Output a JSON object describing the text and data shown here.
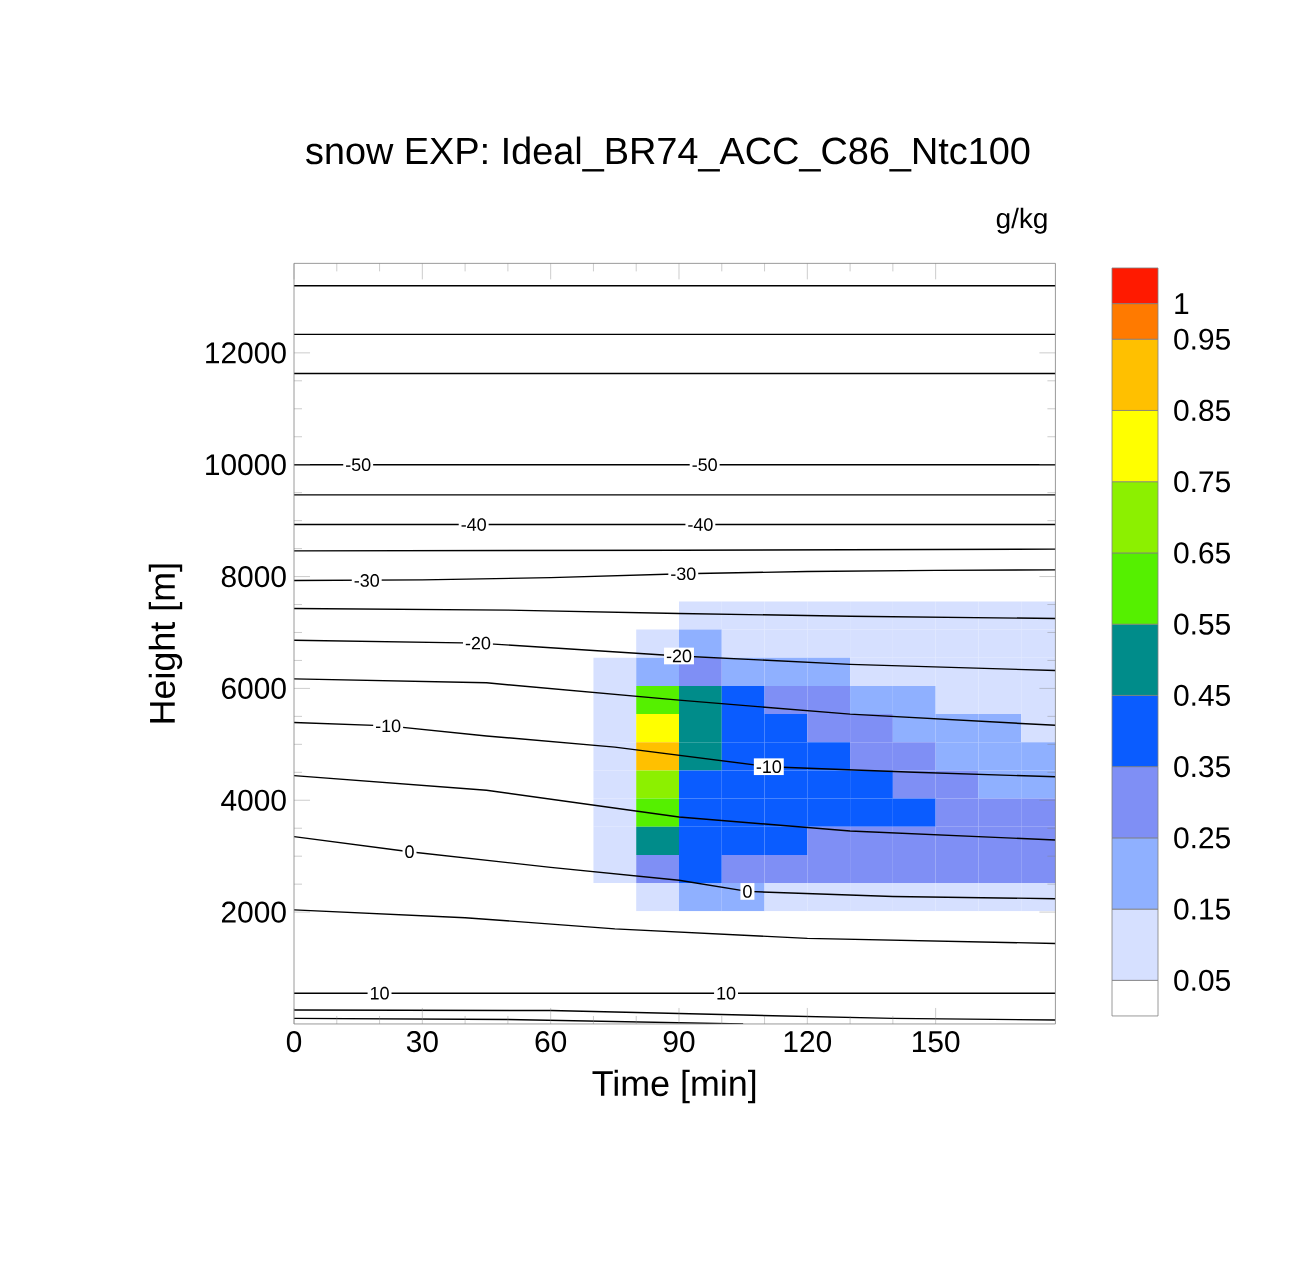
{
  "chart_data": {
    "type": "heatmap",
    "title": "snow EXP: Ideal_BR74_ACC_C86_Ntc100",
    "xlabel": "Time [min]",
    "ylabel": "Height [m]",
    "clabel": "g/kg",
    "x": [
      5,
      15,
      25,
      35,
      45,
      55,
      65,
      75,
      85,
      95,
      105,
      115,
      125,
      135,
      145,
      155,
      165,
      175
    ],
    "cells": [
      [
        0,
        0,
        0,
        0,
        0,
        0,
        0,
        0,
        0,
        0,
        0,
        0,
        0,
        0,
        0,
        0,
        0,
        0
      ],
      [
        0,
        0,
        0,
        0,
        0,
        0,
        0,
        0,
        0,
        0,
        0,
        0,
        0,
        0,
        0,
        0,
        0,
        0
      ],
      [
        0,
        0,
        0,
        0,
        0,
        0,
        0,
        0,
        0,
        0,
        0,
        0,
        0,
        0,
        0,
        0,
        0,
        0
      ],
      [
        0,
        0,
        0,
        0,
        0,
        0,
        0,
        0,
        0,
        0,
        0,
        0,
        0,
        0,
        0,
        0,
        0,
        0
      ],
      [
        0,
        0,
        0,
        0,
        0,
        0,
        0,
        0,
        0,
        0,
        0,
        0,
        0,
        0,
        0,
        0,
        0,
        0
      ],
      [
        0,
        0,
        0,
        0,
        0,
        0,
        0,
        0,
        0,
        0,
        0,
        0,
        0,
        0,
        0,
        0,
        0,
        0
      ],
      [
        0,
        0,
        0,
        0,
        0,
        0,
        0,
        0,
        0,
        0,
        0,
        0,
        0,
        0,
        0,
        0,
        0,
        0
      ],
      [
        0,
        0,
        0,
        0,
        0,
        0,
        0,
        0,
        0,
        0,
        0,
        0,
        0,
        0,
        0,
        0,
        0,
        0
      ],
      [
        0,
        0,
        0,
        0,
        0,
        0,
        0,
        0,
        0,
        0,
        0,
        0,
        0,
        0,
        0,
        0,
        0,
        0
      ],
      [
        0,
        0,
        0,
        0,
        0,
        0,
        0,
        0,
        0,
        0,
        0,
        0,
        0,
        0,
        0,
        0,
        0,
        0
      ],
      [
        0,
        0,
        0,
        0,
        0,
        0,
        0,
        0,
        0,
        0,
        0,
        0,
        0,
        0,
        0,
        0,
        0,
        0
      ],
      [
        0,
        0,
        0,
        0,
        0,
        0,
        0,
        0,
        0,
        0,
        0,
        0,
        0,
        0,
        0,
        0,
        0,
        0
      ],
      [
        0,
        0,
        0,
        0,
        0,
        0,
        0,
        0,
        0,
        0.1,
        0.1,
        0.1,
        0.1,
        0.1,
        0.1,
        0.1,
        0.1,
        0.1
      ],
      [
        0,
        0,
        0,
        0,
        0,
        0,
        0,
        0,
        0.1,
        0.2,
        0.1,
        0.1,
        0.1,
        0.1,
        0.1,
        0.1,
        0.1,
        0.1
      ],
      [
        0,
        0,
        0,
        0,
        0,
        0,
        0,
        0.1,
        0.2,
        0.3,
        0.2,
        0.2,
        0.2,
        0.1,
        0.1,
        0.1,
        0.1,
        0.1
      ],
      [
        0,
        0,
        0,
        0,
        0,
        0,
        0,
        0.1,
        0.6,
        0.5,
        0.4,
        0.3,
        0.3,
        0.2,
        0.2,
        0.1,
        0.1,
        0.1
      ],
      [
        0,
        0,
        0,
        0,
        0,
        0,
        0,
        0.1,
        0.8,
        0.5,
        0.4,
        0.4,
        0.3,
        0.3,
        0.2,
        0.2,
        0.2,
        0.1
      ],
      [
        0,
        0,
        0,
        0,
        0,
        0,
        0,
        0.1,
        0.9,
        0.5,
        0.4,
        0.4,
        0.4,
        0.3,
        0.3,
        0.2,
        0.2,
        0.2
      ],
      [
        0,
        0,
        0,
        0,
        0,
        0,
        0,
        0.1,
        0.7,
        0.4,
        0.4,
        0.4,
        0.4,
        0.4,
        0.3,
        0.3,
        0.2,
        0.2
      ],
      [
        0,
        0,
        0,
        0,
        0,
        0,
        0,
        0.1,
        0.6,
        0.4,
        0.4,
        0.4,
        0.4,
        0.4,
        0.4,
        0.3,
        0.3,
        0.3
      ],
      [
        0,
        0,
        0,
        0,
        0,
        0,
        0,
        0.1,
        0.5,
        0.4,
        0.4,
        0.4,
        0.3,
        0.3,
        0.3,
        0.3,
        0.3,
        0.3
      ],
      [
        0,
        0,
        0,
        0,
        0,
        0,
        0,
        0.1,
        0.3,
        0.4,
        0.3,
        0.3,
        0.3,
        0.3,
        0.3,
        0.3,
        0.3,
        0.3
      ],
      [
        0,
        0,
        0,
        0,
        0,
        0,
        0,
        0,
        0.1,
        0.2,
        0.2,
        0.1,
        0.1,
        0.1,
        0.1,
        0.1,
        0.1,
        0.1
      ],
      [
        0,
        0,
        0,
        0,
        0,
        0,
        0,
        0,
        0,
        0,
        0,
        0,
        0,
        0,
        0,
        0,
        0,
        0
      ],
      [
        0,
        0,
        0,
        0,
        0,
        0,
        0,
        0,
        0,
        0,
        0,
        0,
        0,
        0,
        0,
        0,
        0,
        0
      ],
      [
        0,
        0,
        0,
        0,
        0,
        0,
        0,
        0,
        0,
        0,
        0,
        0,
        0,
        0,
        0,
        0,
        0,
        0
      ],
      [
        0,
        0,
        0,
        0,
        0,
        0,
        0,
        0,
        0,
        0,
        0,
        0,
        0,
        0,
        0,
        0,
        0,
        0
      ]
    ],
    "clim": [
      0,
      1.05
    ],
    "cticks": [
      0.05,
      0.15,
      0.25,
      0.35,
      0.45,
      0.55,
      0.65,
      0.75,
      0.85,
      0.95,
      1
    ],
    "xlim": [
      0,
      178
    ],
    "ylim": [
      0,
      13600
    ],
    "xticks": [
      0,
      30,
      60,
      90,
      120,
      150
    ],
    "yticks": [
      2000,
      4000,
      6000,
      8000,
      10000,
      12000
    ],
    "series": [
      {
        "type": "line",
        "color": "#000000",
        "x": [
          0,
          178
        ],
        "values": [
          13200,
          13200
        ]
      },
      {
        "type": "line",
        "color": "#000000",
        "x": [
          0,
          178
        ],
        "values": [
          12330,
          12330
        ]
      },
      {
        "type": "line",
        "color": "#000000",
        "x": [
          0,
          178
        ],
        "values": [
          11630,
          11630
        ]
      },
      {
        "type": "line",
        "color": "#000000",
        "x": [
          0,
          178
        ],
        "values": [
          10000,
          10000
        ]
      },
      {
        "type": "line",
        "color": "#000000",
        "x": [
          0,
          178
        ],
        "values": [
          9460,
          9460
        ]
      },
      {
        "type": "line",
        "color": "#000000",
        "x": [
          0,
          178
        ],
        "values": [
          8930,
          8930
        ]
      },
      {
        "type": "line",
        "color": "#000000",
        "x": [
          0,
          90,
          178
        ],
        "values": [
          8460,
          8470,
          8490
        ]
      },
      {
        "type": "line",
        "color": "#000000",
        "x": [
          0,
          30,
          60,
          91,
          120,
          150,
          178
        ],
        "values": [
          7930,
          7940,
          7980,
          8050,
          8090,
          8110,
          8120
        ]
      },
      {
        "type": "line",
        "color": "#000000",
        "x": [
          0,
          50,
          90,
          130,
          178
        ],
        "values": [
          7430,
          7400,
          7340,
          7290,
          7250
        ]
      },
      {
        "type": "line",
        "color": "#000000",
        "x": [
          0,
          43,
          90,
          130,
          178
        ],
        "values": [
          6860,
          6810,
          6580,
          6430,
          6320
        ]
      },
      {
        "type": "line",
        "color": "#000000",
        "x": [
          0,
          45,
          90,
          130,
          178
        ],
        "values": [
          6170,
          6100,
          5790,
          5540,
          5340
        ]
      },
      {
        "type": "line",
        "color": "#000000",
        "x": [
          0,
          22,
          45,
          75,
          111,
          145,
          178
        ],
        "values": [
          5390,
          5330,
          5150,
          4950,
          4600,
          4500,
          4420
        ]
      },
      {
        "type": "line",
        "color": "#000000",
        "x": [
          0,
          45,
          90,
          130,
          178
        ],
        "values": [
          4440,
          4180,
          3700,
          3450,
          3290
        ]
      },
      {
        "type": "line",
        "color": "#000000",
        "x": [
          0,
          27,
          60,
          90,
          106,
          140,
          178
        ],
        "values": [
          3350,
          3080,
          2800,
          2570,
          2370,
          2280,
          2240
        ]
      },
      {
        "type": "line",
        "color": "#000000",
        "x": [
          0,
          40,
          75,
          120,
          178
        ],
        "values": [
          2040,
          1900,
          1700,
          1530,
          1440
        ]
      },
      {
        "type": "line",
        "color": "#000000",
        "x": [
          0,
          178
        ],
        "values": [
          550,
          550
        ]
      },
      {
        "type": "line",
        "color": "#000000",
        "x": [
          0,
          60,
          105,
          140,
          178
        ],
        "values": [
          250,
          240,
          160,
          100,
          70
        ]
      },
      {
        "type": "line",
        "color": "#000000",
        "x": [
          0,
          50,
          105
        ],
        "values": [
          100,
          80,
          0
        ]
      }
    ],
    "annotations": [
      {
        "text": "-50",
        "x": 15,
        "y": 10000
      },
      {
        "text": "-50",
        "x": 96,
        "y": 10000
      },
      {
        "text": "-40",
        "x": 42,
        "y": 8930
      },
      {
        "text": "-40",
        "x": 95,
        "y": 8930
      },
      {
        "text": "-30",
        "x": 17,
        "y": 7930
      },
      {
        "text": "-30",
        "x": 91,
        "y": 8050
      },
      {
        "text": "-20",
        "x": 43,
        "y": 6810
      },
      {
        "text": "-20",
        "x": 90,
        "y": 6580
      },
      {
        "text": "-10",
        "x": 22,
        "y": 5330
      },
      {
        "text": "-10",
        "x": 111,
        "y": 4600
      },
      {
        "text": "0",
        "x": 27,
        "y": 3080
      },
      {
        "text": "0",
        "x": 106,
        "y": 2370
      },
      {
        "text": "10",
        "x": 20,
        "y": 550
      },
      {
        "text": "10",
        "x": 101,
        "y": 550
      }
    ]
  }
}
